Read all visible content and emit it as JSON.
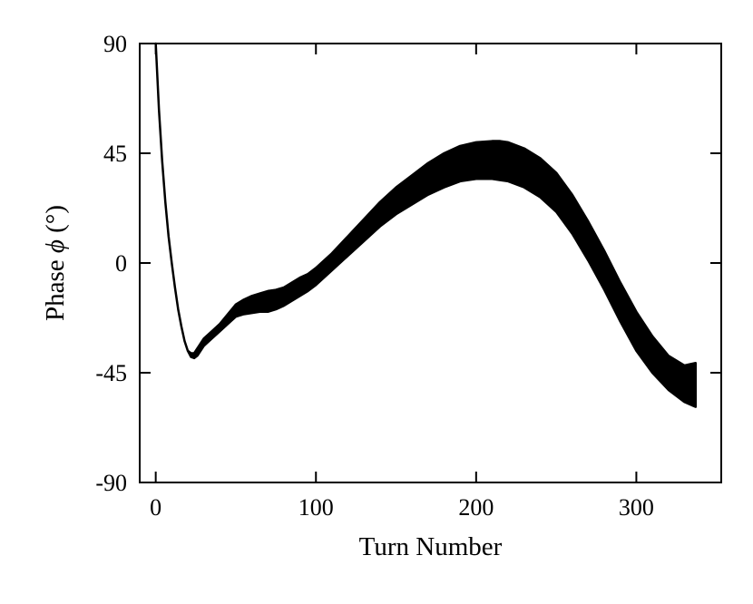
{
  "chart_data": {
    "type": "area",
    "title": "",
    "xlabel": "Turn Number",
    "ylabel_prefix": "Phase ",
    "ylabel_symbol": "ϕ",
    "ylabel_suffix": " (°)",
    "xlim": [
      -10,
      353
    ],
    "ylim": [
      -90,
      90
    ],
    "x_ticks": [
      0,
      100,
      200,
      300
    ],
    "y_ticks": [
      90,
      45,
      0,
      -45,
      -90
    ],
    "x_tick_labels": [
      "0",
      "100",
      "200",
      "300"
    ],
    "y_tick_labels": [
      "90",
      "45",
      "0",
      "-45",
      "-90"
    ],
    "grid": false,
    "legend": "none",
    "fill_color": "#000000",
    "series": [
      {
        "x": [
          0,
          2,
          4,
          6,
          8,
          10,
          12,
          14,
          16,
          18,
          20,
          22,
          24,
          26,
          28,
          30,
          35,
          40,
          45,
          50,
          55,
          60,
          65,
          70,
          75,
          80,
          85,
          90,
          95,
          100,
          110,
          120,
          130,
          140,
          150,
          160,
          170,
          180,
          190,
          200,
          210,
          215,
          220,
          230,
          240,
          250,
          260,
          270,
          280,
          290,
          300,
          310,
          320,
          330,
          337
        ],
        "upper": [
          90,
          63,
          42,
          25,
          11,
          0,
          -10,
          -19,
          -26,
          -32,
          -36,
          -37,
          -37,
          -35,
          -33,
          -31,
          -28,
          -25,
          -21,
          -17,
          -15,
          -13.5,
          -12.5,
          -11.5,
          -11,
          -10,
          -8,
          -6,
          -4.5,
          -2,
          4,
          11,
          18,
          25,
          31,
          36,
          41,
          45,
          48,
          49.5,
          50,
          50,
          49.5,
          47,
          43,
          37,
          28,
          17,
          5,
          -8,
          -20,
          -30,
          -38,
          -42,
          -41
        ],
        "lower": [
          90,
          63,
          42,
          25,
          11,
          0,
          -10,
          -19,
          -26,
          -32,
          -36,
          -38.5,
          -39,
          -38,
          -36,
          -34,
          -31,
          -28,
          -25,
          -22,
          -21,
          -20.5,
          -20,
          -20,
          -19,
          -17.5,
          -15.5,
          -13.5,
          -11.5,
          -9,
          -3,
          3,
          9,
          15,
          20,
          24,
          28,
          31,
          33.5,
          34.5,
          34.5,
          34,
          33.5,
          31,
          27,
          21,
          12,
          1,
          -11,
          -24,
          -36,
          -45,
          -52,
          -57,
          -59
        ]
      }
    ]
  }
}
